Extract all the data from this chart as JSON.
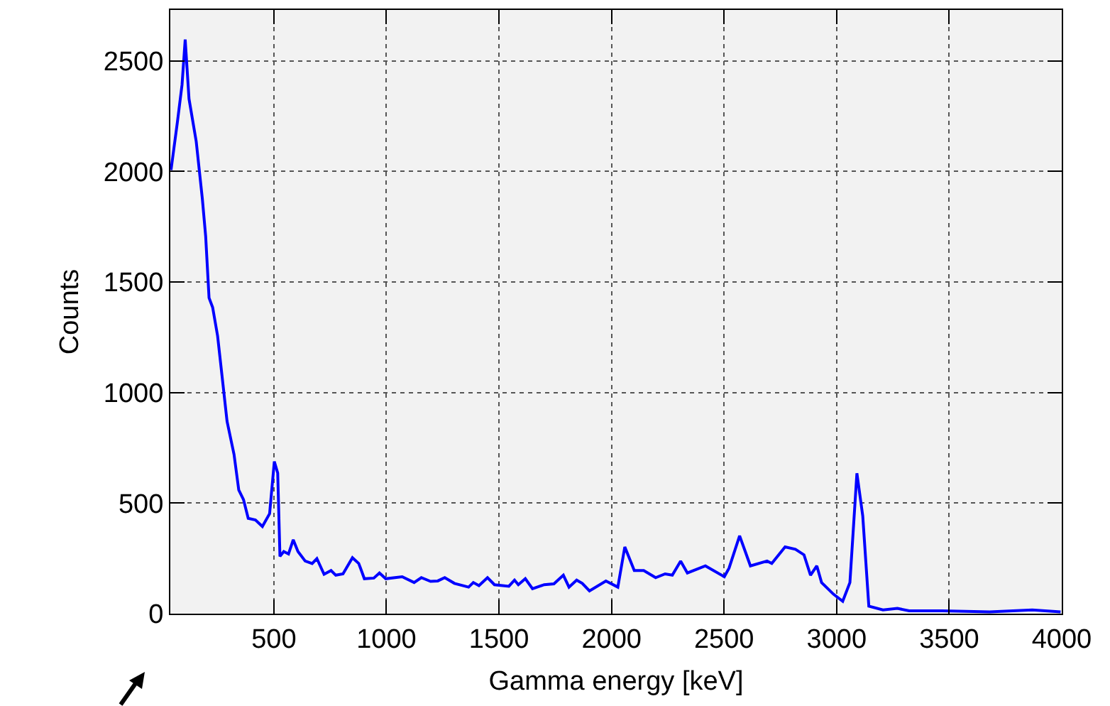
{
  "chart_data": {
    "type": "line",
    "xlabel": "Gamma energy [keV]",
    "ylabel": "Counts",
    "xlim": [
      40,
      4000
    ],
    "xticks": [
      500,
      1000,
      1500,
      2000,
      2500,
      3000,
      3500,
      4000
    ],
    "ylim": [
      0,
      2730
    ],
    "yticks": [
      0,
      500,
      1000,
      1500,
      2000,
      2500
    ],
    "grid": true,
    "marker": "none",
    "line_style": "solid",
    "series": [
      {
        "color": "#0000ff",
        "x": [
          43,
          71,
          92,
          106,
          123,
          155,
          182,
          197,
          212,
          228,
          250,
          271,
          292,
          323,
          344,
          365,
          386,
          418,
          449,
          481,
          502,
          517,
          527,
          544,
          565,
          586,
          607,
          639,
          670,
          691,
          723,
          754,
          775,
          807,
          849,
          877,
          902,
          944,
          969,
          997,
          1070,
          1123,
          1155,
          1196,
          1228,
          1259,
          1302,
          1365,
          1386,
          1411,
          1449,
          1480,
          1544,
          1569,
          1586,
          1617,
          1649,
          1701,
          1744,
          1786,
          1811,
          1845,
          1870,
          1902,
          1975,
          2028,
          2059,
          2101,
          2143,
          2196,
          2238,
          2270,
          2307,
          2337,
          2417,
          2501,
          2522,
          2569,
          2617,
          2691,
          2712,
          2771,
          2817,
          2855,
          2884,
          2912,
          2933,
          2986,
          3027,
          3059,
          3090,
          3116,
          3143,
          3206,
          3270,
          3322,
          3469,
          3680,
          3869,
          3995
        ],
        "values": [
          2006,
          2220,
          2392,
          2596,
          2328,
          2135,
          1878,
          1706,
          1428,
          1385,
          1256,
          1063,
          870,
          720,
          559,
          516,
          431,
          424,
          394,
          452,
          688,
          636,
          259,
          281,
          270,
          334,
          281,
          238,
          227,
          249,
          178,
          195,
          174,
          180,
          253,
          227,
          158,
          161,
          184,
          158,
          167,
          141,
          163,
          146,
          148,
          163,
          137,
          120,
          141,
          127,
          163,
          131,
          124,
          152,
          131,
          158,
          113,
          131,
          135,
          174,
          120,
          152,
          137,
          103,
          148,
          120,
          302,
          195,
          195,
          163,
          180,
          174,
          238,
          184,
          216,
          167,
          206,
          352,
          216,
          238,
          227,
          302,
          291,
          266,
          174,
          216,
          141,
          88,
          56,
          141,
          635,
          442,
          34,
          17,
          24,
          13,
          13,
          8,
          17,
          8
        ]
      }
    ]
  }
}
